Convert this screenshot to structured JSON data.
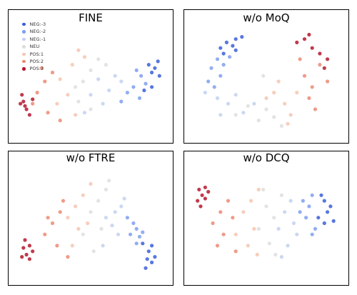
{
  "chart_data": [
    {
      "type": "scatter",
      "title": "FINE",
      "legend": {
        "placement": "top-left",
        "entries": [
          "NEG:-3",
          "NEG:-2",
          "NEG:-1",
          "NEU",
          "POS:1",
          "POS:2",
          "POS:3"
        ]
      },
      "series": [
        {
          "name": "NEG:-3",
          "color": "#3b5fd9",
          "points": [
            [
              0.92,
              0.38
            ],
            [
              0.94,
              0.32
            ],
            [
              0.9,
              0.42
            ],
            [
              0.88,
              0.35
            ],
            [
              0.95,
              0.45
            ],
            [
              0.85,
              0.58
            ],
            [
              0.9,
              0.55
            ]
          ]
        },
        {
          "name": "NEG:-2",
          "color": "#7f9ff0",
          "points": [
            [
              0.83,
              0.45
            ],
            [
              0.86,
              0.52
            ],
            [
              0.8,
              0.4
            ],
            [
              0.78,
              0.55
            ],
            [
              0.82,
              0.65
            ],
            [
              0.74,
              0.6
            ],
            [
              0.7,
              0.68
            ]
          ]
        },
        {
          "name": "NEG:-1",
          "color": "#c2d1ef",
          "points": [
            [
              0.7,
              0.5
            ],
            [
              0.62,
              0.58
            ],
            [
              0.58,
              0.7
            ],
            [
              0.66,
              0.45
            ],
            [
              0.55,
              0.48
            ],
            [
              0.5,
              0.62
            ],
            [
              0.46,
              0.78
            ]
          ]
        },
        {
          "name": "NEU",
          "color": "#dedede",
          "points": [
            [
              0.5,
              0.4
            ],
            [
              0.45,
              0.5
            ],
            [
              0.55,
              0.3
            ],
            [
              0.4,
              0.55
            ],
            [
              0.6,
              0.35
            ],
            [
              0.42,
              0.68
            ],
            [
              0.5,
              0.75
            ]
          ]
        },
        {
          "name": "POS:1",
          "color": "#f5c5b0",
          "points": [
            [
              0.38,
              0.35
            ],
            [
              0.42,
              0.22
            ],
            [
              0.3,
              0.48
            ],
            [
              0.46,
              0.28
            ],
            [
              0.35,
              0.62
            ],
            [
              0.28,
              0.7
            ],
            [
              0.4,
              0.8
            ]
          ]
        },
        {
          "name": "POS:2",
          "color": "#ec8a73",
          "points": [
            [
              0.2,
              0.5
            ],
            [
              0.15,
              0.6
            ],
            [
              0.25,
              0.42
            ],
            [
              0.12,
              0.7
            ],
            [
              0.22,
              0.78
            ],
            [
              0.18,
              0.38
            ],
            [
              0.3,
              0.85
            ]
          ]
        },
        {
          "name": "POS:3",
          "color": "#b5182e",
          "points": [
            [
              0.06,
              0.68
            ],
            [
              0.08,
              0.75
            ],
            [
              0.05,
              0.62
            ],
            [
              0.1,
              0.8
            ],
            [
              0.07,
              0.72
            ],
            [
              0.12,
              0.66
            ],
            [
              0.04,
              0.7
            ]
          ]
        }
      ]
    },
    {
      "type": "scatter",
      "title": "w/o MoQ",
      "series": [
        {
          "name": "NEG:-3",
          "color": "#3b5fd9",
          "points": [
            [
              0.24,
              0.15
            ],
            [
              0.3,
              0.12
            ],
            [
              0.2,
              0.2
            ],
            [
              0.28,
              0.18
            ],
            [
              0.34,
              0.1
            ],
            [
              0.22,
              0.25
            ],
            [
              0.3,
              0.22
            ]
          ]
        },
        {
          "name": "NEG:-2",
          "color": "#7f9ff0",
          "points": [
            [
              0.18,
              0.3
            ],
            [
              0.14,
              0.38
            ],
            [
              0.2,
              0.45
            ],
            [
              0.26,
              0.28
            ],
            [
              0.12,
              0.5
            ],
            [
              0.22,
              0.35
            ],
            [
              0.16,
              0.55
            ]
          ]
        },
        {
          "name": "NEG:-1",
          "color": "#c2d1ef",
          "points": [
            [
              0.1,
              0.6
            ],
            [
              0.18,
              0.65
            ],
            [
              0.25,
              0.7
            ],
            [
              0.3,
              0.62
            ],
            [
              0.35,
              0.78
            ],
            [
              0.2,
              0.8
            ],
            [
              0.42,
              0.7
            ]
          ]
        },
        {
          "name": "NEU",
          "color": "#dedede",
          "points": [
            [
              0.3,
              0.8
            ],
            [
              0.38,
              0.72
            ],
            [
              0.45,
              0.85
            ],
            [
              0.5,
              0.75
            ],
            [
              0.55,
              0.82
            ],
            [
              0.48,
              0.45
            ],
            [
              0.6,
              0.9
            ]
          ]
        },
        {
          "name": "POS:1",
          "color": "#f5c5b0",
          "points": [
            [
              0.55,
              0.6
            ],
            [
              0.62,
              0.7
            ],
            [
              0.58,
              0.5
            ],
            [
              0.66,
              0.8
            ],
            [
              0.5,
              0.65
            ],
            [
              0.7,
              0.6
            ],
            [
              0.64,
              0.88
            ]
          ]
        },
        {
          "name": "POS:2",
          "color": "#ec8a73",
          "points": [
            [
              0.75,
              0.45
            ],
            [
              0.8,
              0.55
            ],
            [
              0.85,
              0.35
            ],
            [
              0.78,
              0.65
            ],
            [
              0.9,
              0.5
            ],
            [
              0.72,
              0.3
            ],
            [
              0.82,
              0.75
            ]
          ]
        },
        {
          "name": "POS:3",
          "color": "#b5182e",
          "points": [
            [
              0.7,
              0.15
            ],
            [
              0.75,
              0.12
            ],
            [
              0.8,
              0.2
            ],
            [
              0.85,
              0.25
            ],
            [
              0.9,
              0.3
            ],
            [
              0.78,
              0.08
            ],
            [
              0.88,
              0.38
            ]
          ]
        }
      ]
    },
    {
      "type": "scatter",
      "title": "w/o FTRE",
      "series": [
        {
          "name": "NEG:-3",
          "color": "#3b5fd9",
          "points": [
            [
              0.88,
              0.75
            ],
            [
              0.9,
              0.85
            ],
            [
              0.86,
              0.9
            ],
            [
              0.92,
              0.8
            ],
            [
              0.84,
              0.68
            ],
            [
              0.9,
              0.7
            ],
            [
              0.87,
              0.82
            ]
          ]
        },
        {
          "name": "NEG:-2",
          "color": "#7f9ff0",
          "points": [
            [
              0.8,
              0.55
            ],
            [
              0.82,
              0.62
            ],
            [
              0.78,
              0.5
            ],
            [
              0.76,
              0.6
            ],
            [
              0.84,
              0.58
            ],
            [
              0.74,
              0.45
            ],
            [
              0.8,
              0.68
            ]
          ]
        },
        {
          "name": "NEG:-1",
          "color": "#c2d1ef",
          "points": [
            [
              0.7,
              0.35
            ],
            [
              0.66,
              0.4
            ],
            [
              0.72,
              0.28
            ],
            [
              0.64,
              0.52
            ],
            [
              0.68,
              0.6
            ],
            [
              0.6,
              0.45
            ],
            [
              0.58,
              0.7
            ]
          ]
        },
        {
          "name": "NEU",
          "color": "#dedede",
          "points": [
            [
              0.55,
              0.3
            ],
            [
              0.6,
              0.2
            ],
            [
              0.5,
              0.4
            ],
            [
              0.62,
              0.12
            ],
            [
              0.45,
              0.6
            ],
            [
              0.52,
              0.75
            ],
            [
              0.57,
              0.55
            ]
          ]
        },
        {
          "name": "POS:1",
          "color": "#f5c5b0",
          "points": [
            [
              0.45,
              0.25
            ],
            [
              0.4,
              0.35
            ],
            [
              0.5,
              0.15
            ],
            [
              0.35,
              0.45
            ],
            [
              0.42,
              0.55
            ],
            [
              0.38,
              0.7
            ],
            [
              0.48,
              0.5
            ]
          ]
        },
        {
          "name": "POS:2",
          "color": "#ec8a73",
          "points": [
            [
              0.25,
              0.5
            ],
            [
              0.3,
              0.4
            ],
            [
              0.2,
              0.6
            ],
            [
              0.28,
              0.7
            ],
            [
              0.32,
              0.3
            ],
            [
              0.22,
              0.45
            ],
            [
              0.35,
              0.8
            ]
          ]
        },
        {
          "name": "POS:3",
          "color": "#b5182e",
          "points": [
            [
              0.06,
              0.72
            ],
            [
              0.08,
              0.78
            ],
            [
              0.1,
              0.7
            ],
            [
              0.05,
              0.8
            ],
            [
              0.12,
              0.75
            ],
            [
              0.07,
              0.65
            ],
            [
              0.1,
              0.82
            ]
          ]
        }
      ]
    },
    {
      "type": "scatter",
      "title": "w/o DCQ",
      "series": [
        {
          "name": "NEG:-3",
          "color": "#3b5fd9",
          "points": [
            [
              0.88,
              0.3
            ],
            [
              0.9,
              0.4
            ],
            [
              0.92,
              0.35
            ],
            [
              0.86,
              0.25
            ],
            [
              0.84,
              0.45
            ],
            [
              0.94,
              0.48
            ],
            [
              0.88,
              0.5
            ]
          ]
        },
        {
          "name": "NEG:-2",
          "color": "#7f9ff0",
          "points": [
            [
              0.8,
              0.25
            ],
            [
              0.78,
              0.35
            ],
            [
              0.76,
              0.45
            ],
            [
              0.82,
              0.55
            ],
            [
              0.72,
              0.4
            ],
            [
              0.74,
              0.3
            ],
            [
              0.8,
              0.6
            ]
          ]
        },
        {
          "name": "NEG:-1",
          "color": "#c2d1ef",
          "points": [
            [
              0.68,
              0.5
            ],
            [
              0.62,
              0.4
            ],
            [
              0.7,
              0.6
            ],
            [
              0.64,
              0.7
            ],
            [
              0.58,
              0.55
            ],
            [
              0.66,
              0.3
            ],
            [
              0.6,
              0.8
            ]
          ]
        },
        {
          "name": "NEU",
          "color": "#dedede",
          "points": [
            [
              0.55,
              0.45
            ],
            [
              0.5,
              0.35
            ],
            [
              0.6,
              0.25
            ],
            [
              0.45,
              0.55
            ],
            [
              0.52,
              0.68
            ],
            [
              0.48,
              0.2
            ],
            [
              0.56,
              0.78
            ]
          ]
        },
        {
          "name": "POS:1",
          "color": "#f5c5b0",
          "points": [
            [
              0.4,
              0.3
            ],
            [
              0.45,
              0.2
            ],
            [
              0.35,
              0.4
            ],
            [
              0.42,
              0.55
            ],
            [
              0.38,
              0.7
            ],
            [
              0.3,
              0.6
            ],
            [
              0.44,
              0.78
            ]
          ]
        },
        {
          "name": "POS:2",
          "color": "#ec8a73",
          "points": [
            [
              0.2,
              0.4
            ],
            [
              0.25,
              0.3
            ],
            [
              0.15,
              0.5
            ],
            [
              0.22,
              0.6
            ],
            [
              0.28,
              0.45
            ],
            [
              0.18,
              0.7
            ],
            [
              0.3,
              0.75
            ]
          ]
        },
        {
          "name": "POS:3",
          "color": "#b5182e",
          "points": [
            [
              0.06,
              0.2
            ],
            [
              0.08,
              0.25
            ],
            [
              0.1,
              0.18
            ],
            [
              0.05,
              0.3
            ],
            [
              0.12,
              0.22
            ],
            [
              0.07,
              0.35
            ],
            [
              0.1,
              0.28
            ]
          ]
        }
      ]
    }
  ]
}
